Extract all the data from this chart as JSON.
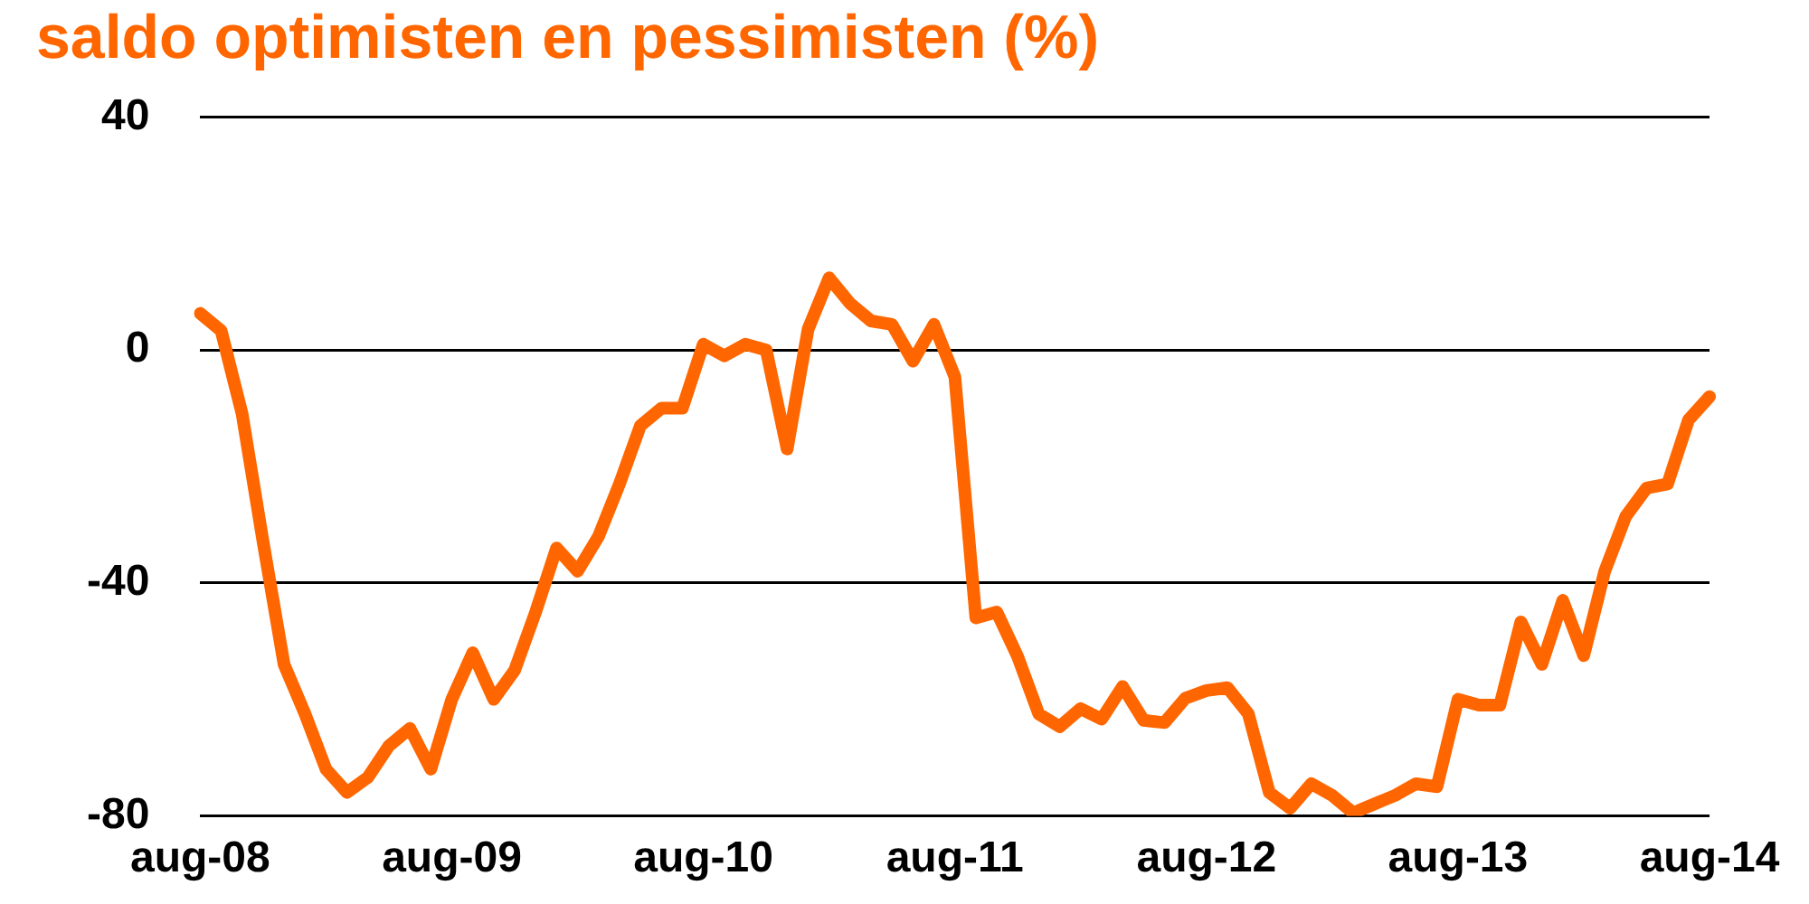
{
  "chart_data": {
    "type": "line",
    "title": "saldo optimisten en pessimisten (%)",
    "categories": [
      "aug-08",
      null,
      null,
      null,
      null,
      null,
      null,
      null,
      null,
      null,
      null,
      null,
      "aug-09",
      null,
      null,
      null,
      null,
      null,
      null,
      null,
      null,
      null,
      null,
      null,
      "aug-10",
      null,
      null,
      null,
      null,
      null,
      null,
      null,
      null,
      null,
      null,
      null,
      "aug-11",
      null,
      null,
      null,
      null,
      null,
      null,
      null,
      null,
      null,
      null,
      null,
      "aug-12",
      null,
      null,
      null,
      null,
      null,
      null,
      null,
      null,
      null,
      null,
      null,
      "aug-13",
      null,
      null,
      null,
      null,
      null,
      null,
      null,
      null,
      null,
      null,
      null,
      "aug-14"
    ],
    "series": [
      {
        "color": "#ff6600",
        "values": [
          6.3,
          3.3,
          -11,
          -33,
          -54,
          -62.5,
          -72,
          -76,
          -73.4,
          -68,
          -65,
          -72,
          -60,
          -52,
          -60,
          -55,
          -45,
          -34,
          -38,
          -32,
          -23,
          -13,
          -10,
          -10,
          1,
          -1,
          1,
          0,
          -17,
          3.6,
          12.4,
          8,
          5,
          4.4,
          -1.9,
          4.4,
          -4.6,
          -46,
          -45,
          -52.7,
          -62.5,
          -64.7,
          -61.6,
          -63.4,
          -57.8,
          -63.6,
          -64,
          -59.8,
          -58.5,
          -58,
          -62.5,
          -76,
          -78.7,
          -74.5,
          -76.5,
          -79.5,
          -78,
          -76.5,
          -74.5,
          -75,
          -60,
          -61,
          -61,
          -46.7,
          -54,
          -43,
          -52.5,
          -38,
          -28.6,
          -23.7,
          -23,
          -12,
          -8
        ]
      }
    ],
    "ylim": [
      -80,
      40
    ],
    "yticks": [
      -80,
      -40,
      0,
      40
    ],
    "grid": "y",
    "legend": false,
    "marker": "none",
    "line_style": "solid"
  }
}
